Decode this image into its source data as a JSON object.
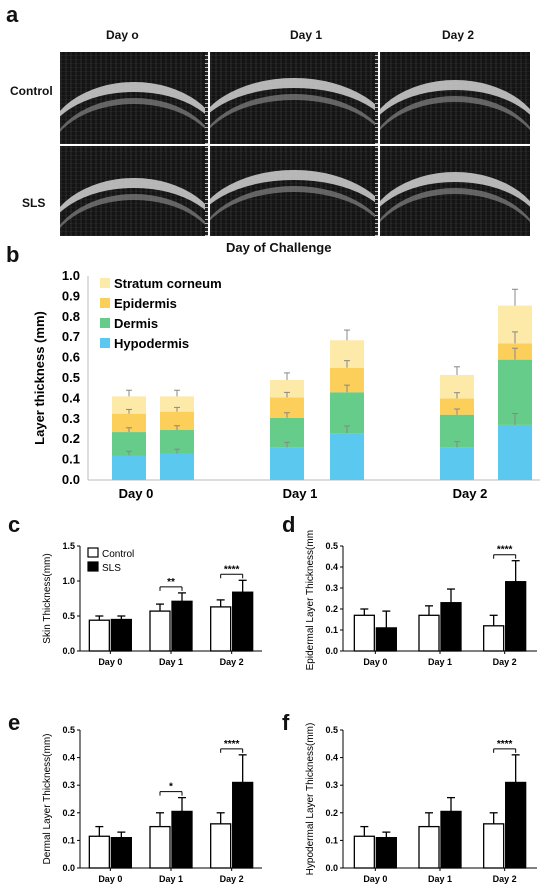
{
  "panels": {
    "a": "a",
    "b": "b",
    "c": "c",
    "d": "d",
    "e": "e",
    "f": "f"
  },
  "panel_a": {
    "col_labels": [
      "Day o",
      "Day 1",
      "Day 2"
    ],
    "row_labels": [
      "Control",
      "SLS"
    ],
    "xlabel": "Day of Challenge"
  },
  "colors": {
    "stratum_corneum": "#fde9a8",
    "epidermis": "#fbcf5a",
    "dermis": "#66cc8a",
    "hypodermis": "#5bc8f0",
    "control_bar": "#ffffff",
    "sls_bar": "#000000"
  },
  "chart_data": [
    {
      "id": "b",
      "type": "bar",
      "stacked": true,
      "ylabel": "Layer thickness (mm)",
      "ylim": [
        0,
        1.0
      ],
      "yticks": [
        "0.0",
        "0.1",
        "0.2",
        "0.3",
        "0.4",
        "0.5",
        "0.6",
        "0.7",
        "0.8",
        "0.9",
        "1.0"
      ],
      "groups": [
        "Day 0",
        "Day 1",
        "Day 2"
      ],
      "legend": [
        "Stratum corneum",
        "Epidermis",
        "Dermis",
        "Hypodermis"
      ],
      "legend_position": "top-left",
      "bars": [
        {
          "group": "Day 0",
          "layers": {
            "hypodermis": 0.12,
            "dermis": 0.115,
            "epidermis": 0.09,
            "stratum_corneum": 0.085
          },
          "err": 0.03
        },
        {
          "group": "Day 0",
          "layers": {
            "hypodermis": 0.13,
            "dermis": 0.115,
            "epidermis": 0.09,
            "stratum_corneum": 0.075
          },
          "err": 0.03
        },
        {
          "group": "Day 1",
          "layers": {
            "hypodermis": 0.16,
            "dermis": 0.145,
            "epidermis": 0.1,
            "stratum_corneum": 0.085
          },
          "err": 0.035
        },
        {
          "group": "Day 1",
          "layers": {
            "hypodermis": 0.23,
            "dermis": 0.2,
            "epidermis": 0.12,
            "stratum_corneum": 0.135
          },
          "err": 0.05
        },
        {
          "group": "Day 2",
          "layers": {
            "hypodermis": 0.16,
            "dermis": 0.16,
            "epidermis": 0.08,
            "stratum_corneum": 0.115
          },
          "err": 0.04
        },
        {
          "group": "Day 2",
          "layers": {
            "hypodermis": 0.27,
            "dermis": 0.32,
            "epidermis": 0.08,
            "stratum_corneum": 0.185
          },
          "err": 0.08
        }
      ]
    },
    {
      "id": "c",
      "type": "bar",
      "ylabel": "Skin Thickness(mm)",
      "ylim": [
        0,
        1.5
      ],
      "yticks": [
        "0.0",
        "0.5",
        "1.0",
        "1.5"
      ],
      "categories": [
        "Day 0",
        "Day 1",
        "Day 2"
      ],
      "legend": [
        "Control",
        "SLS"
      ],
      "legend_position": "top-left",
      "series": [
        {
          "name": "Control",
          "values": [
            0.44,
            0.57,
            0.63
          ],
          "err": [
            0.06,
            0.1,
            0.1
          ]
        },
        {
          "name": "SLS",
          "values": [
            0.45,
            0.71,
            0.84
          ],
          "err": [
            0.05,
            0.12,
            0.17
          ]
        }
      ],
      "significance": [
        {
          "category": "Day 1",
          "label": "**"
        },
        {
          "category": "Day 2",
          "label": "****"
        }
      ]
    },
    {
      "id": "d",
      "type": "bar",
      "ylabel": "Epidermal Layer Thickness(mm)",
      "ylim": [
        0,
        0.5
      ],
      "yticks": [
        "0.0",
        "0.1",
        "0.2",
        "0.3",
        "0.4",
        "0.5"
      ],
      "categories": [
        "Day 0",
        "Day 1",
        "Day 2"
      ],
      "series": [
        {
          "name": "Control",
          "values": [
            0.17,
            0.17,
            0.12
          ],
          "err": [
            0.03,
            0.045,
            0.05
          ]
        },
        {
          "name": "SLS",
          "values": [
            0.11,
            0.23,
            0.33
          ],
          "err": [
            0.08,
            0.065,
            0.1
          ]
        }
      ],
      "significance": [
        {
          "category": "Day 2",
          "label": "****"
        }
      ]
    },
    {
      "id": "e",
      "type": "bar",
      "ylabel": "Dermal Layer Thickness(mm)",
      "ylim": [
        0,
        0.5
      ],
      "yticks": [
        "0.0",
        "0.1",
        "0.2",
        "0.3",
        "0.4",
        "0.5"
      ],
      "categories": [
        "Day 0",
        "Day 1",
        "Day 2"
      ],
      "series": [
        {
          "name": "Control",
          "values": [
            0.115,
            0.15,
            0.16
          ],
          "err": [
            0.035,
            0.05,
            0.04
          ]
        },
        {
          "name": "SLS",
          "values": [
            0.11,
            0.205,
            0.31
          ],
          "err": [
            0.02,
            0.05,
            0.1
          ]
        }
      ],
      "significance": [
        {
          "category": "Day 1",
          "label": "*"
        },
        {
          "category": "Day 2",
          "label": "****"
        }
      ]
    },
    {
      "id": "f",
      "type": "bar",
      "ylabel": "Hypodermal Layer Thickness(mm)",
      "ylim": [
        0,
        0.5
      ],
      "yticks": [
        "0.0",
        "0.1",
        "0.2",
        "0.3",
        "0.4",
        "0.5"
      ],
      "categories": [
        "Day 0",
        "Day 1",
        "Day 2"
      ],
      "series": [
        {
          "name": "Control",
          "values": [
            0.115,
            0.15,
            0.16
          ],
          "err": [
            0.035,
            0.05,
            0.04
          ]
        },
        {
          "name": "SLS",
          "values": [
            0.11,
            0.205,
            0.31
          ],
          "err": [
            0.02,
            0.05,
            0.1
          ]
        }
      ],
      "significance": [
        {
          "category": "Day 2",
          "label": "****"
        }
      ]
    }
  ]
}
